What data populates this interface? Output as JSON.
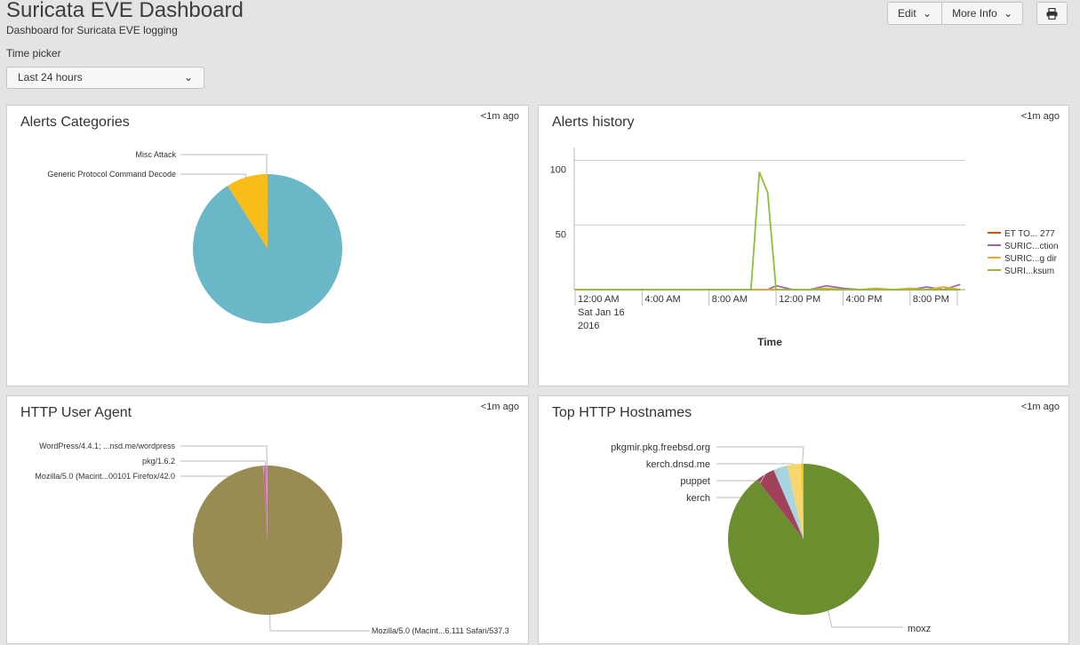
{
  "header": {
    "title": "Suricata EVE Dashboard",
    "description": "Dashboard for Suricata EVE logging",
    "edit_label": "Edit",
    "more_info_label": "More Info",
    "print_icon": "print-icon"
  },
  "time_picker": {
    "label": "Time picker",
    "value": "Last 24 hours"
  },
  "panels": {
    "alerts_categories": {
      "title": "Alerts Categories",
      "updated": "<1m ago",
      "slices": [
        {
          "label": "Misc Attack",
          "value": 0.3,
          "color": "#f8bd19"
        },
        {
          "label": "Generic Protocol Command Decode",
          "value": 8.7,
          "color": "#f8bd19"
        },
        {
          "label": "",
          "value": 91.0,
          "color": "#6ab7c8"
        }
      ]
    },
    "alerts_history": {
      "title": "Alerts history",
      "updated": "<1m ago",
      "x_label": "Time",
      "x_ticks": [
        "12:00 AM",
        "4:00 AM",
        "8:00 AM",
        "12:00 PM",
        "4:00 PM",
        "8:00 PM"
      ],
      "x_tick_sub": [
        "Sat Jan 16",
        "2016"
      ],
      "y_ticks": [
        "100",
        "50"
      ],
      "legend": [
        "ET TO... 277",
        "SURIC...ction",
        "SURIC...g dir",
        "SURI...ksum"
      ]
    },
    "http_user_agent": {
      "title": "HTTP User Agent",
      "updated": "<1m ago",
      "slices": [
        {
          "label": "WordPress/4.4.1; ...nsd.me/wordpress",
          "value": 0.2,
          "color": "#d0a0c0"
        },
        {
          "label": "pkg/1.6.2",
          "value": 0.3,
          "color": "#c77fb6"
        },
        {
          "label": "Mozilla/5.0 (Macint...00101 Firefox/42.0",
          "value": 0.5,
          "color": "#d35f9a"
        },
        {
          "label": "Mozilla/5.0 (Macint...6.111 Safari/537.3",
          "value": 99.0,
          "color": "#998c52"
        }
      ]
    },
    "top_http_hostnames": {
      "title": "Top HTTP Hostnames",
      "updated": "<1m ago",
      "slices": [
        {
          "label": "pkgmir.pkg.freebsd.org",
          "value": 0.5,
          "color": "#f8bd19"
        },
        {
          "label": "kerch.dnsd.me",
          "value": 3.0,
          "color": "#f5d76e"
        },
        {
          "label": "puppet",
          "value": 3.0,
          "color": "#a8d5e2"
        },
        {
          "label": "kerch",
          "value": 4.0,
          "color": "#a0435a"
        },
        {
          "label": "moxz",
          "value": 89.5,
          "color": "#6b8e2e"
        }
      ]
    }
  },
  "chart_data": [
    {
      "type": "pie",
      "title": "Alerts Categories",
      "categories": [
        "Misc Attack",
        "Generic Protocol Command Decode",
        ""
      ],
      "values": [
        0.3,
        8.7,
        91.0
      ]
    },
    {
      "type": "line",
      "title": "Alerts history",
      "xlabel": "Time",
      "ylabel": "",
      "x": [
        "12:00 AM",
        "2:00 AM",
        "4:00 AM",
        "6:00 AM",
        "8:00 AM",
        "9:00 AM",
        "10:00 AM",
        "10:30 AM",
        "11:00 AM",
        "11:30 AM",
        "12:00 PM",
        "1:00 PM",
        "2:00 PM",
        "3:00 PM",
        "4:00 PM",
        "5:00 PM",
        "6:00 PM",
        "7:00 PM",
        "8:00 PM",
        "9:00 PM",
        "10:00 PM",
        "11:00 PM"
      ],
      "ylim": [
        0,
        110
      ],
      "grid": true,
      "legend_position": "right",
      "series": [
        {
          "name": "ET TO... 277",
          "color": "#d35400",
          "values": [
            0,
            0,
            0,
            0,
            0,
            0,
            0,
            0,
            0,
            0,
            0,
            0,
            0,
            0,
            0,
            0,
            0,
            0,
            0,
            0,
            0,
            0
          ]
        },
        {
          "name": "SURIC...ction",
          "color": "#9b6aa6",
          "values": [
            0,
            0,
            0,
            0,
            0,
            0,
            0,
            0,
            0,
            0,
            3,
            0,
            0,
            3,
            1,
            0,
            0,
            0,
            0,
            2,
            0,
            4
          ]
        },
        {
          "name": "SURIC...g dir",
          "color": "#e8a838",
          "values": [
            0,
            0,
            0,
            0,
            0,
            0,
            0,
            0,
            0,
            0,
            0,
            0,
            0,
            1,
            0,
            0,
            1,
            0,
            1,
            0,
            2,
            0
          ]
        },
        {
          "name": "SURI...ksum",
          "color": "#8fbe3a",
          "values": [
            0,
            0,
            0,
            0,
            0,
            0,
            0,
            0,
            91,
            75,
            0,
            0,
            0,
            0,
            0,
            0,
            0,
            0,
            0,
            0,
            0,
            0
          ]
        }
      ]
    },
    {
      "type": "pie",
      "title": "HTTP User Agent",
      "categories": [
        "WordPress/4.4.1; ...nsd.me/wordpress",
        "pkg/1.6.2",
        "Mozilla/5.0 (Macint...00101 Firefox/42.0",
        "Mozilla/5.0 (Macint...6.111 Safari/537.3"
      ],
      "values": [
        0.2,
        0.3,
        0.5,
        99.0
      ]
    },
    {
      "type": "pie",
      "title": "Top HTTP Hostnames",
      "categories": [
        "pkgmir.pkg.freebsd.org",
        "kerch.dnsd.me",
        "puppet",
        "kerch",
        "moxz"
      ],
      "values": [
        0.5,
        3.0,
        3.0,
        4.0,
        89.5
      ]
    }
  ]
}
